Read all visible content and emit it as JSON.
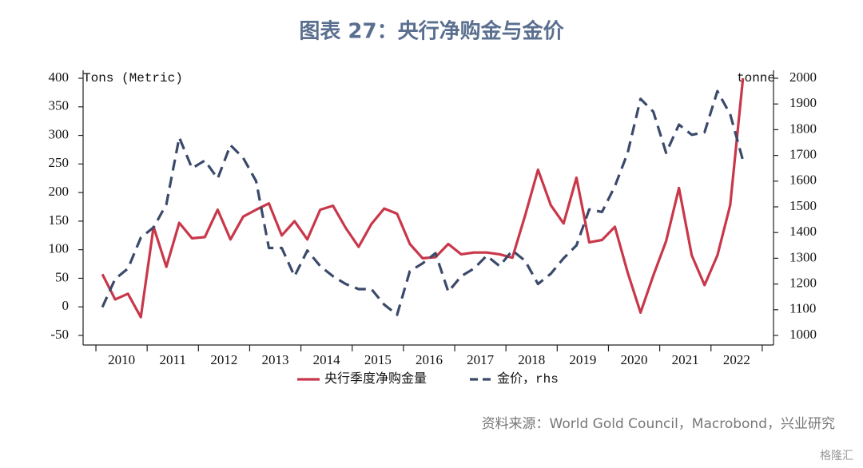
{
  "chart_data": {
    "type": "line",
    "title": "图表 27：央行净购金与金价",
    "ylabel": "Tons (Metric)",
    "y2label": "tonne",
    "source": "资料来源：World Gold Council，Macrobond，兴业研究",
    "watermark": "格隆汇",
    "x": [
      2010.125,
      2010.375,
      2010.625,
      2010.875,
      2011.125,
      2011.375,
      2011.625,
      2011.875,
      2012.125,
      2012.375,
      2012.625,
      2012.875,
      2013.125,
      2013.375,
      2013.625,
      2013.875,
      2014.125,
      2014.375,
      2014.625,
      2014.875,
      2015.125,
      2015.375,
      2015.625,
      2015.875,
      2016.125,
      2016.375,
      2016.625,
      2016.875,
      2017.125,
      2017.375,
      2017.625,
      2017.875,
      2018.125,
      2018.375,
      2018.625,
      2018.875,
      2019.125,
      2019.375,
      2019.625,
      2019.875,
      2020.125,
      2020.375,
      2020.625,
      2020.875,
      2021.125,
      2021.375,
      2021.625,
      2021.875,
      2022.125,
      2022.375,
      2022.625
    ],
    "xlim": [
      2009.75,
      2023.22
    ],
    "xtick_marks": [
      2010,
      2011,
      2012,
      2013,
      2014,
      2015,
      2016,
      2017,
      2018,
      2019,
      2020,
      2021,
      2022,
      2023
    ],
    "xticks": [
      {
        "value": 2010.5,
        "label": "2010"
      },
      {
        "value": 2011.5,
        "label": "2011"
      },
      {
        "value": 2012.5,
        "label": "2012"
      },
      {
        "value": 2013.5,
        "label": "2013"
      },
      {
        "value": 2014.5,
        "label": "2014"
      },
      {
        "value": 2015.5,
        "label": "2015"
      },
      {
        "value": 2016.5,
        "label": "2016"
      },
      {
        "value": 2017.5,
        "label": "2017"
      },
      {
        "value": 2018.5,
        "label": "2018"
      },
      {
        "value": 2019.5,
        "label": "2019"
      },
      {
        "value": 2020.5,
        "label": "2020"
      },
      {
        "value": 2021.5,
        "label": "2021"
      },
      {
        "value": 2022.5,
        "label": "2022"
      }
    ],
    "ylim": [
      -50,
      400
    ],
    "yticks": [
      -50,
      0,
      50,
      100,
      150,
      200,
      250,
      300,
      350,
      400
    ],
    "y2lim": [
      1000,
      2000
    ],
    "y2ticks": [
      1000,
      1100,
      1200,
      1300,
      1400,
      1500,
      1600,
      1700,
      1800,
      1900,
      2000
    ],
    "series": [
      {
        "name": "央行季度净购金量",
        "color": "#c8374a",
        "dash": false,
        "values": [
          57,
          13,
          23,
          -18,
          140,
          70,
          147,
          120,
          122,
          170,
          118,
          158,
          170,
          181,
          125,
          150,
          118,
          170,
          177,
          138,
          105,
          145,
          172,
          163,
          110,
          85,
          87,
          110,
          92,
          95,
          95,
          92,
          86,
          160,
          240,
          178,
          146,
          226,
          113,
          117,
          140,
          60,
          -10,
          55,
          115,
          208,
          90,
          38,
          90,
          178,
          400
        ]
      },
      {
        "name": "金价，rhs",
        "color": "#3b4a6b",
        "dash": true,
        "axis": "y2",
        "values": [
          1110,
          1220,
          1260,
          1380,
          1420,
          1510,
          1770,
          1650,
          1680,
          1610,
          1740,
          1690,
          1600,
          1340,
          1340,
          1230,
          1330,
          1270,
          1230,
          1200,
          1180,
          1180,
          1120,
          1080,
          1250,
          1280,
          1320,
          1170,
          1230,
          1260,
          1310,
          1270,
          1330,
          1290,
          1200,
          1240,
          1300,
          1350,
          1490,
          1480,
          1580,
          1710,
          1920,
          1870,
          1710,
          1820,
          1780,
          1790,
          1950,
          1860,
          1680
        ]
      }
    ]
  }
}
